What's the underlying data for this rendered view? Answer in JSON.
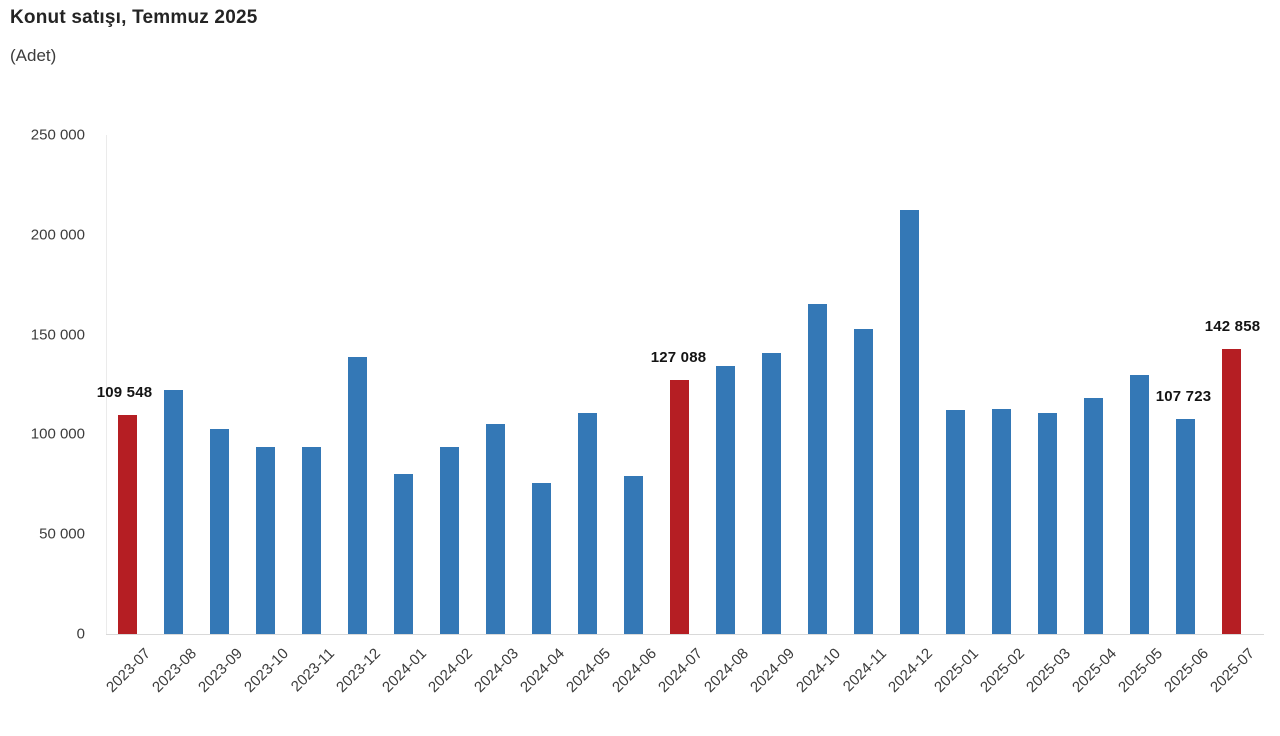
{
  "header": {
    "title": "Konut satışı, Temmuz 2025",
    "subtitle": "(Adet)"
  },
  "chart_data": {
    "type": "bar",
    "title": "Konut satışı, Temmuz 2025",
    "unit_label": "(Adet)",
    "xlabel": "",
    "ylabel": "Adet",
    "ylim": [
      0,
      250000
    ],
    "grid": false,
    "legend": false,
    "categories": [
      "2023-07",
      "2023-08",
      "2023-09",
      "2023-10",
      "2023-11",
      "2023-12",
      "2024-01",
      "2024-02",
      "2024-03",
      "2024-04",
      "2024-05",
      "2024-06",
      "2024-07",
      "2024-08",
      "2024-09",
      "2024-10",
      "2024-11",
      "2024-12",
      "2025-01",
      "2025-02",
      "2025-03",
      "2025-04",
      "2025-05",
      "2025-06",
      "2025-07"
    ],
    "values": [
      109548,
      122091,
      102656,
      93761,
      93514,
      138577,
      80308,
      93902,
      105476,
      75569,
      110588,
      79313,
      127088,
      134155,
      140919,
      165138,
      153014,
      212637,
      112173,
      112818,
      110795,
      118359,
      130025,
      107723,
      142858
    ],
    "highlighted_indices": [
      0,
      12,
      24
    ],
    "data_labels": [
      {
        "index": 0,
        "text": "109 548",
        "dx": -3
      },
      {
        "index": 12,
        "text": "127 088",
        "dx": -1
      },
      {
        "index": 23,
        "text": "107 723",
        "dx": -2
      },
      {
        "index": 24,
        "text": "142 858",
        "dx": 1
      }
    ],
    "yticks": [
      {
        "value": 0,
        "label": "0"
      },
      {
        "value": 50000,
        "label": "50 000"
      },
      {
        "value": 100000,
        "label": "100 000"
      },
      {
        "value": 150000,
        "label": "150 000"
      },
      {
        "value": 200000,
        "label": "200 000"
      },
      {
        "value": 250000,
        "label": "250 000"
      }
    ],
    "colors": {
      "bar": "#3478b6",
      "highlight": "#b51e23",
      "axis_line": "#ebebeb",
      "baseline": "#d9d9d9",
      "tick_text": "#3c3c3c",
      "value_text": "#141414"
    }
  }
}
